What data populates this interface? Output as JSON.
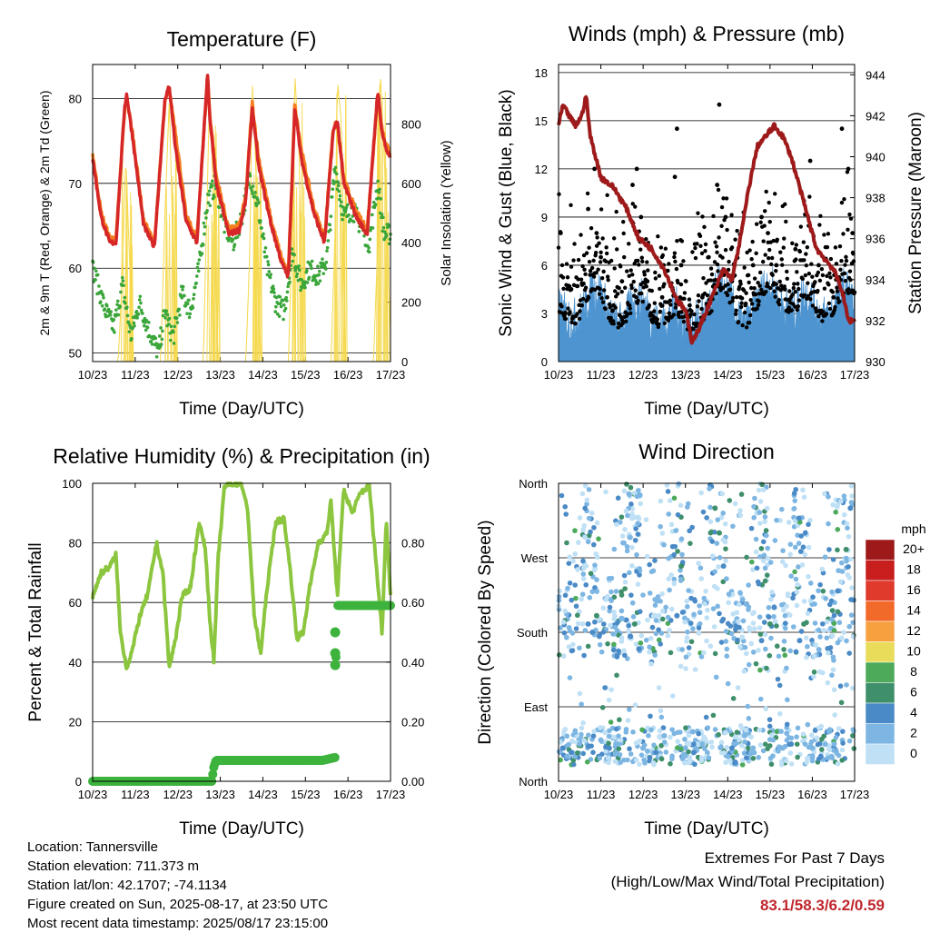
{
  "colors": {
    "t2m": "#d62728",
    "t9m": "#f57f20",
    "td": "#3aa63a",
    "solar": "#f5d84a",
    "wind": "#4d94d0",
    "gust": "#000000",
    "pressure": "#9e1a1a",
    "rh": "#8cc63f",
    "precip": "#3db33d"
  },
  "time_ticks": [
    "10/23",
    "11/23",
    "12/23",
    "13/23",
    "14/23",
    "15/23",
    "16/23",
    "17/23"
  ],
  "panels": {
    "temperature": {
      "title": "Temperature (F)",
      "xlabel": "Time (Day/UTC)",
      "ylabel_left": "2m & 9m T (Red, Orange) & 2m Td (Green)",
      "ylabel_right": "Solar Insolation (Yellow)"
    },
    "winds": {
      "title": "Winds (mph) & Pressure (mb)",
      "xlabel": "Time (Day/UTC)",
      "ylabel_left": "Sonic Wind & Gust (Blue, Black)",
      "ylabel_right": "Station Pressure (Maroon)"
    },
    "humidity": {
      "title": "Relative Humidity (%) & Precipitation (in)",
      "xlabel": "Time (Day/UTC)",
      "ylabel_left": "Percent & Total Rainfall"
    },
    "direction": {
      "title": "Wind Direction",
      "xlabel": "Time (Day/UTC)",
      "ylabel_left": "Direction (Colored By Speed)",
      "colorbar_title": "mph",
      "colorbar_labels": [
        "20+",
        "18",
        "16",
        "14",
        "12",
        "10",
        "8",
        "6",
        "4",
        "2",
        "0"
      ],
      "colorbar_colors": [
        "#9e1a1a",
        "#c81e1e",
        "#e03a2c",
        "#f26a2a",
        "#f7a040",
        "#e8dc5a",
        "#4caa5a",
        "#3e8f6a",
        "#4a8ac6",
        "#7db6e2",
        "#bfe0f5"
      ]
    }
  },
  "chart_data": [
    {
      "id": "temperature",
      "type": "line",
      "x_unit": "days since 10/23 (Day/UTC)",
      "xlim": [
        0,
        7
      ],
      "ylim": [
        49,
        84
      ],
      "yticks": [
        50,
        60,
        70,
        80
      ],
      "y2lim": [
        0,
        1000
      ],
      "y2ticks": [
        0,
        200,
        400,
        600,
        800
      ],
      "grid": true,
      "series": [
        {
          "name": "2m T",
          "axis": "left",
          "x": [
            0,
            0.2,
            0.4,
            0.55,
            0.75,
            0.8,
            0.95,
            1.2,
            1.45,
            1.7,
            1.8,
            1.95,
            2.2,
            2.45,
            2.7,
            2.75,
            2.9,
            3.2,
            3.45,
            3.6,
            3.75,
            3.9,
            4.2,
            4.45,
            4.6,
            4.75,
            4.9,
            5.2,
            5.45,
            5.65,
            5.75,
            5.9,
            6.2,
            6.45,
            6.7,
            6.8,
            6.9,
            7.0
          ],
          "values": [
            73,
            66,
            63,
            63,
            79,
            80.5,
            75,
            65,
            62.5,
            80,
            81.5,
            74,
            65.5,
            63,
            83,
            78,
            70,
            64,
            64.5,
            68,
            79,
            72,
            65,
            60.5,
            59,
            79,
            73,
            66.5,
            63,
            76,
            77.5,
            70,
            66,
            64,
            81,
            76,
            74,
            73
          ]
        },
        {
          "name": "9m T",
          "axis": "left",
          "x": [
            0,
            0.2,
            0.4,
            0.55,
            0.75,
            0.8,
            0.95,
            1.2,
            1.45,
            1.7,
            1.8,
            1.95,
            2.2,
            2.45,
            2.7,
            2.75,
            2.9,
            3.2,
            3.45,
            3.6,
            3.75,
            3.9,
            4.2,
            4.45,
            4.6,
            4.75,
            4.9,
            5.2,
            5.45,
            5.65,
            5.75,
            5.9,
            6.2,
            6.45,
            6.7,
            6.8,
            6.9,
            7.0
          ],
          "values": [
            73.5,
            66.5,
            63.5,
            63.5,
            78.5,
            80,
            75.5,
            65.5,
            63,
            79.5,
            81,
            76,
            66,
            63.5,
            82.5,
            78.5,
            71,
            64.5,
            65,
            68.5,
            79.5,
            73,
            65.5,
            61,
            59.5,
            79.5,
            74,
            67,
            63.5,
            76.5,
            77,
            70.5,
            66.5,
            64.5,
            80.5,
            76.5,
            74.5,
            73.5
          ]
        },
        {
          "name": "2m Td",
          "axis": "left",
          "x": [
            0,
            0.3,
            0.5,
            0.7,
            0.9,
            1.1,
            1.3,
            1.55,
            1.7,
            1.8,
            1.9,
            2.1,
            2.3,
            2.5,
            2.7,
            2.9,
            3.1,
            3.3,
            3.5,
            3.7,
            3.9,
            4.1,
            4.3,
            4.5,
            4.7,
            4.9,
            5.1,
            5.3,
            5.5,
            5.7,
            5.9,
            6.1,
            6.3,
            6.5,
            6.7,
            6.85,
            7.0
          ],
          "values": [
            60,
            55,
            53,
            58,
            52,
            56,
            53,
            50,
            55,
            53,
            52,
            57,
            55,
            60,
            68,
            70,
            65,
            63,
            66,
            71,
            67,
            60,
            56,
            55,
            62,
            58,
            60,
            59,
            61,
            72,
            66,
            67,
            65,
            63,
            70,
            64,
            64
          ]
        },
        {
          "name": "Solar Insolation",
          "axis": "right",
          "x": [
            0,
            0.6,
            0.7,
            0.78,
            0.85,
            0.95,
            1.6,
            1.7,
            1.8,
            1.85,
            1.95,
            2.6,
            2.7,
            2.75,
            2.85,
            2.95,
            3.6,
            3.7,
            3.75,
            3.85,
            3.95,
            4.6,
            4.7,
            4.75,
            4.85,
            4.95,
            5.6,
            5.7,
            5.75,
            5.85,
            5.95,
            6.6,
            6.7,
            6.75,
            6.85,
            7.0
          ],
          "values": [
            0,
            0,
            300,
            700,
            400,
            0,
            0,
            500,
            880,
            600,
            0,
            0,
            600,
            920,
            500,
            0,
            0,
            400,
            950,
            600,
            0,
            0,
            500,
            980,
            700,
            0,
            0,
            450,
            950,
            800,
            0,
            0,
            400,
            1000,
            700,
            100
          ]
        }
      ]
    },
    {
      "id": "winds",
      "type": "line",
      "x_unit": "days since 10/23 (Day/UTC)",
      "xlim": [
        0,
        7
      ],
      "ylim": [
        0,
        18.5
      ],
      "yticks": [
        0,
        3,
        6,
        9,
        12,
        15,
        18
      ],
      "y2lim": [
        930,
        944.5
      ],
      "y2ticks": [
        930,
        932,
        934,
        936,
        938,
        940,
        942,
        944
      ],
      "grid": true,
      "series": [
        {
          "name": "Sonic Wind",
          "axis": "left",
          "x": [
            0,
            0.2,
            0.4,
            0.6,
            0.8,
            1.0,
            1.2,
            1.4,
            1.6,
            1.8,
            2.0,
            2.2,
            2.4,
            2.6,
            2.8,
            3.0,
            3.2,
            3.4,
            3.6,
            3.8,
            4.0,
            4.2,
            4.4,
            4.6,
            4.8,
            5.0,
            5.2,
            5.4,
            5.6,
            5.8,
            6.0,
            6.2,
            6.4,
            6.6,
            6.8,
            7.0
          ],
          "values": [
            2.5,
            2.0,
            1.8,
            2.5,
            4.0,
            3.5,
            2.0,
            1.5,
            2.0,
            3.0,
            3.0,
            2.0,
            1.5,
            2.0,
            2.5,
            1.5,
            1.5,
            2.0,
            2.5,
            4.0,
            3.5,
            2.0,
            1.5,
            2.0,
            3.5,
            4.0,
            3.0,
            2.5,
            2.5,
            3.5,
            3.0,
            2.0,
            2.0,
            3.0,
            4.0,
            2.5
          ]
        },
        {
          "name": "Gust",
          "axis": "left",
          "type": "scatter",
          "x": [
            0.05,
            0.3,
            0.55,
            0.7,
            0.85,
            0.9,
            1.0,
            1.15,
            1.3,
            1.5,
            1.75,
            1.85,
            1.95,
            2.1,
            2.45,
            2.75,
            2.8,
            2.9,
            3.1,
            3.4,
            3.55,
            3.75,
            3.8,
            3.95,
            4.1,
            4.3,
            4.6,
            4.8,
            4.95,
            5.15,
            5.35,
            5.6,
            5.8,
            5.95,
            6.15,
            6.5,
            6.7,
            6.85,
            6.95
          ],
          "values": [
            8.0,
            4.5,
            3.5,
            9.5,
            12.0,
            8.0,
            6.5,
            4.0,
            3.5,
            5.0,
            11.0,
            12.0,
            9.0,
            5.0,
            4.0,
            11.5,
            14.5,
            6.0,
            3.5,
            4.0,
            6.5,
            11.0,
            16.0,
            9.0,
            5.0,
            4.0,
            6.0,
            9.0,
            8.0,
            6.0,
            4.5,
            7.0,
            10.0,
            12.5,
            6.0,
            4.0,
            14.5,
            12.0,
            8.0
          ]
        },
        {
          "name": "Station Pressure",
          "axis": "right",
          "x": [
            0,
            0.1,
            0.25,
            0.4,
            0.55,
            0.65,
            0.75,
            1.0,
            1.3,
            1.6,
            1.9,
            2.2,
            2.5,
            2.8,
            3.0,
            3.15,
            3.3,
            3.5,
            3.7,
            3.9,
            4.1,
            4.3,
            4.5,
            4.7,
            4.9,
            5.1,
            5.3,
            5.5,
            5.7,
            5.9,
            6.1,
            6.3,
            6.5,
            6.7,
            6.85,
            7.0
          ],
          "values": [
            941.5,
            942.5,
            942.0,
            941.5,
            942.0,
            943.0,
            941.0,
            939.0,
            938.5,
            937.5,
            936.0,
            935.5,
            934.5,
            933.0,
            932.5,
            931.0,
            931.5,
            932.5,
            933.5,
            934.5,
            934.0,
            936.0,
            938.5,
            940.5,
            941.0,
            941.5,
            941.0,
            940.0,
            938.5,
            937.0,
            935.5,
            935.0,
            934.5,
            933.5,
            932.0,
            932.0
          ]
        }
      ]
    },
    {
      "id": "humidity",
      "type": "line",
      "x_unit": "days since 10/23 (Day/UTC)",
      "xlim": [
        0,
        7
      ],
      "ylim": [
        0,
        100
      ],
      "yticks": [
        0,
        20,
        40,
        60,
        80,
        100
      ],
      "y2lim": [
        0,
        1.0
      ],
      "y2ticks": [
        "0.00",
        "0.20",
        "0.40",
        "0.60",
        "0.80"
      ],
      "grid": true,
      "series": [
        {
          "name": "Relative Humidity",
          "axis": "left",
          "x": [
            0,
            0.2,
            0.4,
            0.55,
            0.65,
            0.8,
            0.95,
            1.1,
            1.3,
            1.5,
            1.65,
            1.8,
            1.95,
            2.1,
            2.3,
            2.5,
            2.65,
            2.75,
            2.85,
            2.95,
            3.1,
            3.3,
            3.5,
            3.65,
            3.8,
            3.95,
            4.1,
            4.3,
            4.5,
            4.65,
            4.8,
            4.95,
            5.1,
            5.3,
            5.5,
            5.6,
            5.75,
            5.9,
            6.1,
            6.3,
            6.5,
            6.65,
            6.8,
            6.9,
            7.0
          ],
          "values": [
            62,
            70,
            72,
            76,
            50,
            38,
            45,
            55,
            63,
            80,
            70,
            38,
            48,
            62,
            65,
            87,
            78,
            55,
            40,
            75,
            99,
            100,
            100,
            90,
            55,
            43,
            65,
            87,
            88,
            70,
            48,
            50,
            65,
            80,
            83,
            94,
            62,
            98,
            90,
            97,
            99,
            75,
            50,
            88,
            62
          ]
        },
        {
          "name": "Total Precipitation",
          "axis": "right",
          "x": [
            0,
            1.0,
            2.0,
            2.8,
            2.85,
            2.9,
            3.5,
            4.5,
            5.4,
            5.7,
            5.71,
            5.72,
            5.73,
            5.75,
            6.5,
            7.0
          ],
          "values": [
            0.0,
            0.0,
            0.0,
            0.0,
            0.05,
            0.07,
            0.07,
            0.07,
            0.07,
            0.08,
            0.39,
            0.43,
            0.5,
            0.59,
            0.59,
            0.59
          ]
        }
      ]
    },
    {
      "id": "direction",
      "type": "scatter",
      "x_unit": "days since 10/23 (Day/UTC)",
      "xlim": [
        0,
        7
      ],
      "ylim": [
        0,
        360
      ],
      "ytick_labels": [
        "North",
        "East",
        "South",
        "West",
        "North"
      ],
      "grid": true,
      "series": [
        {
          "name": "Wind Direction",
          "x": [
            0.1,
            0.2,
            0.3,
            0.5,
            0.7,
            0.8,
            0.9,
            1.0,
            1.2,
            1.4,
            1.7,
            1.8,
            1.9,
            2.0,
            2.3,
            2.5,
            2.8,
            2.9,
            3.0,
            3.2,
            3.4,
            3.7,
            3.8,
            3.9,
            4.0,
            4.1,
            4.4,
            4.6,
            4.8,
            5.0,
            5.1,
            5.3,
            5.5,
            5.7,
            5.8,
            6.0,
            6.2,
            6.4,
            6.6,
            6.8,
            6.9
          ],
          "values": [
            40,
            30,
            35,
            45,
            190,
            180,
            200,
            50,
            40,
            45,
            175,
            190,
            160,
            40,
            35,
            55,
            200,
            260,
            40,
            35,
            45,
            330,
            300,
            260,
            30,
            40,
            55,
            40,
            170,
            190,
            210,
            40,
            45,
            170,
            190,
            40,
            30,
            60,
            230,
            280,
            330
          ],
          "speeds": [
            3,
            2,
            3,
            2,
            4,
            4,
            5,
            2,
            3,
            2,
            4,
            5,
            3,
            2,
            3,
            1,
            4,
            5,
            2,
            3,
            2,
            5,
            6,
            4,
            2,
            3,
            1,
            2,
            4,
            5,
            4,
            2,
            3,
            4,
            5,
            2,
            3,
            1,
            4,
            5,
            4
          ]
        }
      ]
    }
  ],
  "footer": {
    "location": "Location: Tannersville",
    "elevation": "Station elevation: 711.373 m",
    "latlon": "Station lat/lon: 42.1707; -74.1134",
    "created": "Figure created on Sun, 2025-08-17, at 23:50 UTC",
    "recent": "Most recent data timestamp: 2025/08/17 23:15:00"
  },
  "extremes": {
    "heading": "Extremes For Past 7 Days",
    "subheading": "(High/Low/Max Wind/Total Precipitation)",
    "values": "83.1/58.3/6.2/0.59"
  }
}
